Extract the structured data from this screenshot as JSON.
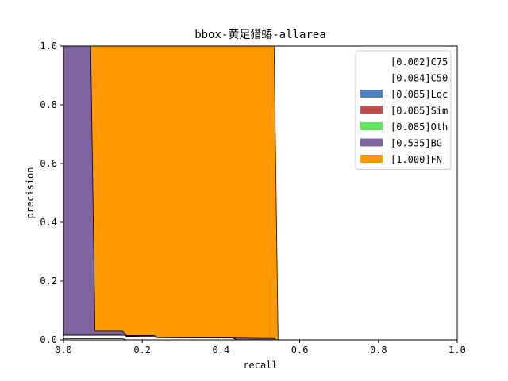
{
  "chart_data": {
    "type": "area",
    "title": "bbox-黄足猎蝽-allarea",
    "xlabel": "recall",
    "ylabel": "precision",
    "xlim": [
      0,
      1
    ],
    "ylim": [
      0,
      1
    ],
    "grid": false,
    "legend_position": "top-right",
    "x_ticks": [
      "0.0",
      "0.2",
      "0.4",
      "0.6",
      "0.8",
      "1.0"
    ],
    "y_ticks": [
      "0.0",
      "0.2",
      "0.4",
      "0.6",
      "0.8",
      "1.0"
    ],
    "series": [
      {
        "name": "[0.002]C75",
        "color": "#ffffff",
        "points": [
          [
            0,
            0.004
          ],
          [
            0.15,
            0.004
          ],
          [
            0.16,
            0
          ],
          [
            1,
            0
          ]
        ]
      },
      {
        "name": "[0.084]C50",
        "color": "#ffffff",
        "points": [
          [
            0,
            0.016
          ],
          [
            0.07,
            0.016
          ],
          [
            0.08,
            0.016
          ],
          [
            0.155,
            0.016
          ],
          [
            0.16,
            0.012
          ],
          [
            0.23,
            0.01
          ],
          [
            0.24,
            0.007
          ],
          [
            0.43,
            0.006
          ],
          [
            0.44,
            0
          ],
          [
            1,
            0
          ]
        ]
      },
      {
        "name": "[0.085]Loc",
        "color": "#4f81bd",
        "points": [
          [
            0,
            0.016
          ],
          [
            0.07,
            0.016
          ],
          [
            0.08,
            0.016
          ],
          [
            0.155,
            0.016
          ],
          [
            0.16,
            0.012
          ],
          [
            0.23,
            0.01
          ],
          [
            0.24,
            0.007
          ],
          [
            0.43,
            0.006
          ],
          [
            0.44,
            0
          ],
          [
            1,
            0
          ]
        ]
      },
      {
        "name": "[0.085]Sim",
        "color": "#c0504d",
        "points": [
          [
            0,
            0.016
          ],
          [
            0.07,
            0.016
          ],
          [
            0.08,
            0.016
          ],
          [
            0.155,
            0.016
          ],
          [
            0.16,
            0.012
          ],
          [
            0.23,
            0.01
          ],
          [
            0.24,
            0.007
          ],
          [
            0.43,
            0.006
          ],
          [
            0.44,
            0
          ],
          [
            1,
            0
          ]
        ]
      },
      {
        "name": "[0.085]Oth",
        "color": "#5ee55e",
        "points": [
          [
            0,
            0.016
          ],
          [
            0.07,
            0.016
          ],
          [
            0.08,
            0.016
          ],
          [
            0.155,
            0.016
          ],
          [
            0.16,
            0.012
          ],
          [
            0.23,
            0.01
          ],
          [
            0.24,
            0.007
          ],
          [
            0.43,
            0.006
          ],
          [
            0.44,
            0
          ],
          [
            1,
            0
          ]
        ]
      },
      {
        "name": "[0.535]BG",
        "color": "#8064a2",
        "points": [
          [
            0,
            1
          ],
          [
            0.069,
            1
          ],
          [
            0.08,
            0.03
          ],
          [
            0.15,
            0.03
          ],
          [
            0.16,
            0.015
          ],
          [
            0.23,
            0.015
          ],
          [
            0.24,
            0.008
          ],
          [
            0.4,
            0.007
          ],
          [
            0.5,
            0.005
          ],
          [
            0.53,
            0.005
          ],
          [
            0.535,
            0.005
          ],
          [
            0.54,
            0
          ],
          [
            1,
            0
          ]
        ]
      },
      {
        "name": "[1.000]FN",
        "color": "#ff9900",
        "points": [
          [
            0,
            1
          ],
          [
            0.53,
            1
          ],
          [
            0.535,
            1
          ],
          [
            0.545,
            0
          ],
          [
            1,
            0
          ]
        ]
      }
    ]
  }
}
